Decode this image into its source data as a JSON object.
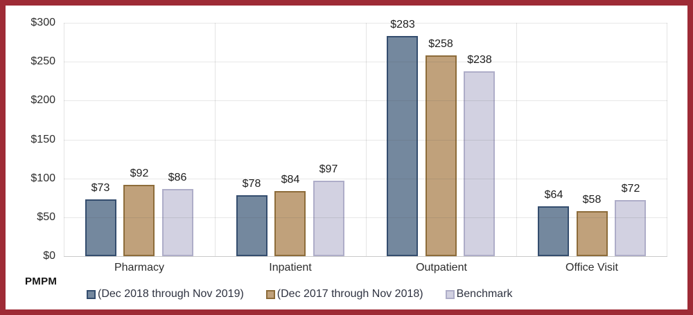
{
  "frame": {
    "border_color": "#9e2b36",
    "background": "#ffffff"
  },
  "chart_data": {
    "type": "bar",
    "title": "",
    "xlabel": "",
    "ylabel": "",
    "axis_footer": "PMPM",
    "categories": [
      "Pharmacy",
      "Inpatient",
      "Outpatient",
      "Office Visit"
    ],
    "series": [
      {
        "name": "(Dec 2018 through Nov 2019)",
        "values": [
          73,
          78,
          283,
          64
        ],
        "fill": "#74889e",
        "border": "#344d6e"
      },
      {
        "name": "(Dec 2017 through Nov 2018)",
        "values": [
          92,
          84,
          258,
          58
        ],
        "fill": "#c0a17b",
        "border": "#8d6c3a"
      },
      {
        "name": "Benchmark",
        "values": [
          86,
          97,
          238,
          72
        ],
        "fill": "#d2d1e1",
        "border": "#aeadc8"
      }
    ],
    "value_prefix": "$",
    "data_labels": true,
    "y_ticks": [
      0,
      50,
      100,
      150,
      200,
      250,
      300
    ],
    "ylim": [
      0,
      300
    ],
    "grid": true,
    "legend_position": "bottom"
  }
}
